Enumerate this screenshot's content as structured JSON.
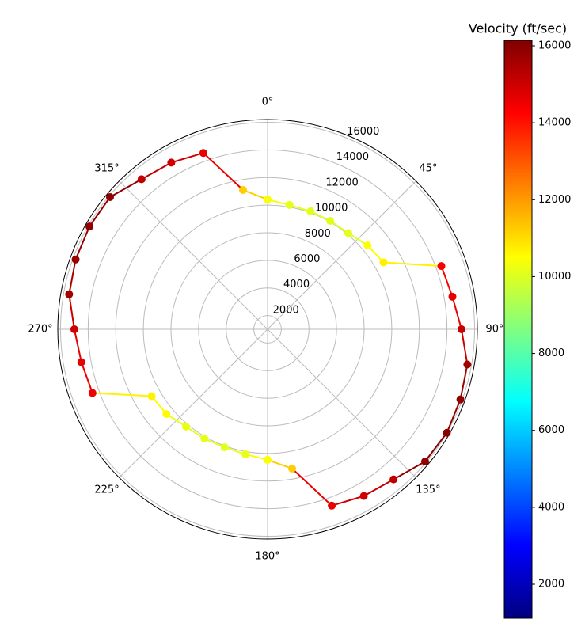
{
  "chart_data": {
    "type": "polar-line",
    "x": [
      0,
      10,
      20,
      30,
      40,
      50,
      60,
      70,
      80,
      90,
      100,
      110,
      120,
      130,
      140,
      150,
      160,
      170,
      180,
      190,
      200,
      210,
      220,
      230,
      240,
      250,
      260,
      270,
      280,
      290,
      300,
      310,
      320,
      330,
      340,
      350,
      360
    ],
    "values": [
      10400,
      10150,
      10100,
      10070,
      10100,
      10460,
      10700,
      14400,
      14600,
      15050,
      15700,
      15870,
      16000,
      15900,
      15200,
      14950,
      14600,
      11250,
      10460,
      10200,
      10100,
      10150,
      10200,
      10560,
      10700,
      14500,
      14700,
      15000,
      15600,
      15800,
      15900,
      15900,
      15200,
      14950,
      14600,
      11250,
      10400
    ],
    "xlim": [
      0,
      360
    ],
    "xticks": [
      {
        "value": 0,
        "label": "0°"
      },
      {
        "value": 45,
        "label": "45°"
      },
      {
        "value": 90,
        "label": "90°"
      },
      {
        "value": 135,
        "label": "135°"
      },
      {
        "value": 180,
        "label": "180°"
      },
      {
        "value": 225,
        "label": "225°"
      },
      {
        "value": 270,
        "label": "270°"
      },
      {
        "value": 315,
        "label": "315°"
      }
    ],
    "ylim": [
      1000,
      16200
    ],
    "yticks": [
      2000,
      4000,
      6000,
      8000,
      10000,
      12000,
      14000,
      16000
    ],
    "grid": true,
    "colormap": "jet",
    "clim": [
      1115,
      16144
    ],
    "cticks": [
      2000,
      4000,
      6000,
      8000,
      10000,
      12000,
      14000,
      16000
    ],
    "colorbar_label": "Velocity (ft/sec)"
  }
}
